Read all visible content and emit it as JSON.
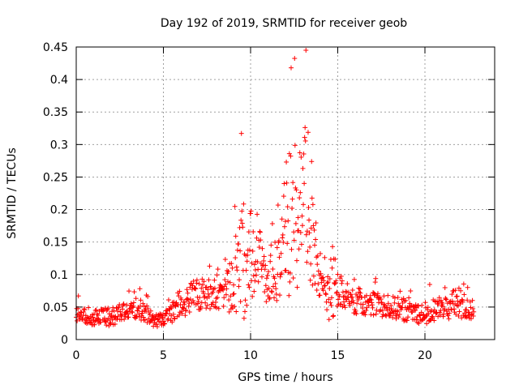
{
  "chart_data": {
    "type": "scatter",
    "title": "Day 192 of 2019, SRMTID for receiver geob",
    "xlabel": "GPS time / hours",
    "ylabel": "SRMTID / TECUs",
    "xlim": [
      0,
      24
    ],
    "ylim": [
      0,
      0.45
    ],
    "xticks": [
      0,
      5,
      10,
      15,
      20
    ],
    "xtick_labels": [
      "0",
      "5",
      "10",
      "15",
      "20"
    ],
    "yticks": [
      0,
      0.05,
      0.1,
      0.15,
      0.2,
      0.25,
      0.3,
      0.35,
      0.4,
      0.45
    ],
    "ytick_labels": [
      "0",
      "0.05",
      "0.1",
      "0.15",
      "0.2",
      "0.25",
      "0.3",
      "0.35",
      "0.4",
      "0.45"
    ],
    "grid": true,
    "marker": "+",
    "color": "#ff0000",
    "sampling": "approximate: ~10 points per 0.1 h, x from 0 to 22.8 h",
    "envelope": {
      "x": [
        0,
        1,
        2,
        3,
        3.5,
        4,
        4.5,
        5,
        5.5,
        6,
        6.5,
        7,
        7.5,
        8,
        8.5,
        9,
        9.3,
        9.6,
        10,
        10.3,
        10.6,
        11,
        11.5,
        12,
        12.2,
        12.5,
        12.8,
        13,
        13.3,
        13.6,
        14,
        14.3,
        14.6,
        15,
        15.5,
        16,
        17,
        18,
        19,
        20,
        21,
        22,
        22.8
      ],
      "base": [
        0.04,
        0.035,
        0.035,
        0.045,
        0.05,
        0.04,
        0.03,
        0.03,
        0.04,
        0.055,
        0.065,
        0.07,
        0.07,
        0.065,
        0.07,
        0.09,
        0.11,
        0.12,
        0.13,
        0.14,
        0.11,
        0.09,
        0.1,
        0.16,
        0.2,
        0.2,
        0.19,
        0.22,
        0.2,
        0.15,
        0.1,
        0.08,
        0.09,
        0.075,
        0.07,
        0.06,
        0.055,
        0.05,
        0.045,
        0.04,
        0.05,
        0.055,
        0.045
      ],
      "spread": [
        0.02,
        0.02,
        0.02,
        0.02,
        0.025,
        0.02,
        0.015,
        0.015,
        0.02,
        0.035,
        0.035,
        0.035,
        0.035,
        0.03,
        0.04,
        0.07,
        0.12,
        0.13,
        0.1,
        0.11,
        0.07,
        0.05,
        0.06,
        0.14,
        0.2,
        0.18,
        0.15,
        0.18,
        0.18,
        0.1,
        0.05,
        0.04,
        0.1,
        0.04,
        0.035,
        0.03,
        0.025,
        0.025,
        0.025,
        0.025,
        0.03,
        0.035,
        0.025
      ]
    }
  }
}
